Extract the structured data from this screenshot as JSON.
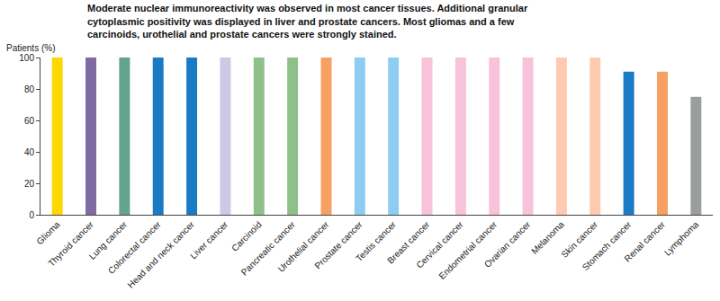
{
  "chart_data": {
    "type": "bar",
    "title": "Moderate nuclear immunoreactivity was observed in most cancer tissues. Additional granular cytoplasmic positivity was displayed in liver and prostate cancers. Most gliomas and a few carcinoids, urothelial and prostate cancers were strongly stained.",
    "y_label": "Patients (%)",
    "categories": [
      "Glioma",
      "Thyroid cancer",
      "Lung cancer",
      "Colorectal cancer",
      "Head and neck cancer",
      "Liver cancer",
      "Carcinoid",
      "Pancreatic cancer",
      "Urothelial cancer",
      "Prostate cancer",
      "Testis cancer",
      "Breast cancer",
      "Cervical cancer",
      "Endometrial cancer",
      "Ovarian cancer",
      "Melanoma",
      "Skin cancer",
      "Stomach cancer",
      "Renal cancer",
      "Lymphoma"
    ],
    "values": [
      100,
      100,
      100,
      100,
      100,
      100,
      100,
      100,
      100,
      100,
      100,
      100,
      100,
      100,
      100,
      100,
      100,
      91,
      91,
      75
    ],
    "colors": [
      "#ffd700",
      "#7f6aa2",
      "#62a38c",
      "#1a7bc4",
      "#1a7bc4",
      "#cdc8e6",
      "#8fc08a",
      "#8fc08a",
      "#f7a064",
      "#8ecdf0",
      "#8ecdf0",
      "#f7c2da",
      "#f7c2da",
      "#f7c2da",
      "#f7c2da",
      "#fdcbb0",
      "#fdcbb0",
      "#1a7bc4",
      "#f7a064",
      "#9a9e9e"
    ],
    "ylim": [
      0,
      100
    ],
    "yticks": [
      0,
      20,
      40,
      60,
      80,
      100
    ],
    "grid": false
  }
}
